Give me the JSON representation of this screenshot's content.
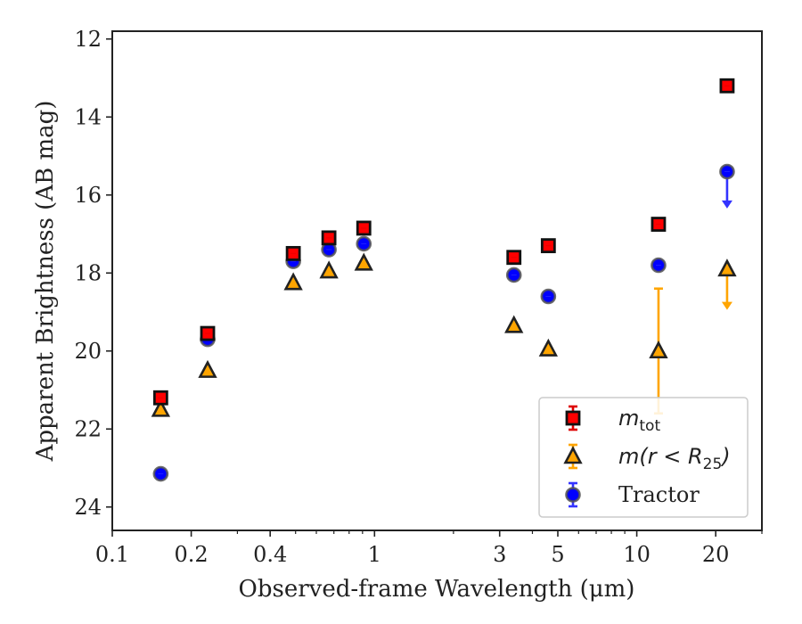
{
  "chart_data": {
    "type": "scatter",
    "title": "",
    "xlabel": "Observed-frame Wavelength (μm)",
    "ylabel": "Apparent Brightness (AB mag)",
    "xscale": "log",
    "xlim": [
      0.1,
      30
    ],
    "ylim": [
      24.6,
      11.8
    ],
    "y_inverted": true,
    "grid": false,
    "legend_position": "lower-right",
    "xticks": [
      {
        "value": 0.1,
        "label": "0.1"
      },
      {
        "value": 0.2,
        "label": "0.2"
      },
      {
        "value": 0.4,
        "label": "0.4"
      },
      {
        "value": 1,
        "label": "1"
      },
      {
        "value": 3,
        "label": "3"
      },
      {
        "value": 5,
        "label": "5"
      },
      {
        "value": 10,
        "label": "10"
      },
      {
        "value": 20,
        "label": "20"
      }
    ],
    "xminor": [
      0.3,
      0.5,
      0.6,
      0.7,
      0.8,
      0.9,
      2,
      4,
      6,
      7,
      8,
      9,
      30
    ],
    "yticks": [
      {
        "value": 12,
        "label": "12"
      },
      {
        "value": 14,
        "label": "14"
      },
      {
        "value": 16,
        "label": "16"
      },
      {
        "value": 18,
        "label": "18"
      },
      {
        "value": 20,
        "label": "20"
      },
      {
        "value": 22,
        "label": "22"
      },
      {
        "value": 24,
        "label": "24"
      }
    ],
    "series": [
      {
        "name": "m_tot",
        "marker": "square",
        "color": "#ff0000",
        "edge": "#111111",
        "err_color": "#dd0000",
        "points": [
          {
            "x": 0.153,
            "y": 21.2
          },
          {
            "x": 0.231,
            "y": 19.55
          },
          {
            "x": 0.49,
            "y": 17.5
          },
          {
            "x": 0.67,
            "y": 17.1
          },
          {
            "x": 0.91,
            "y": 16.85
          },
          {
            "x": 3.4,
            "y": 17.6
          },
          {
            "x": 4.6,
            "y": 17.3
          },
          {
            "x": 12.1,
            "y": 16.75
          },
          {
            "x": 22.1,
            "y": 13.2
          }
        ]
      },
      {
        "name": "m(r < R_25)",
        "marker": "triangle",
        "color": "#ffa500",
        "edge": "#222222",
        "err_color": "#ffa500",
        "points": [
          {
            "x": 0.153,
            "y": 21.5
          },
          {
            "x": 0.231,
            "y": 20.5
          },
          {
            "x": 0.49,
            "y": 18.25
          },
          {
            "x": 0.67,
            "y": 17.95
          },
          {
            "x": 0.91,
            "y": 17.75
          },
          {
            "x": 3.4,
            "y": 19.35
          },
          {
            "x": 4.6,
            "y": 19.95
          },
          {
            "x": 12.1,
            "y": 20.0,
            "err_low": 18.4,
            "err_high": 21.6
          },
          {
            "x": 22.1,
            "y": 17.9,
            "upper_limit_to": 18.9
          }
        ]
      },
      {
        "name": "Tractor",
        "marker": "circle",
        "color": "#0000ff",
        "edge": "#555555",
        "err_color": "#3333ff",
        "points": [
          {
            "x": 0.153,
            "y": 23.15
          },
          {
            "x": 0.231,
            "y": 19.7
          },
          {
            "x": 0.49,
            "y": 17.7
          },
          {
            "x": 0.67,
            "y": 17.4
          },
          {
            "x": 0.91,
            "y": 17.25
          },
          {
            "x": 3.4,
            "y": 18.05
          },
          {
            "x": 4.6,
            "y": 18.6
          },
          {
            "x": 12.1,
            "y": 17.8
          },
          {
            "x": 22.1,
            "y": 15.4,
            "upper_limit_to": 16.3
          }
        ]
      }
    ],
    "legend": {
      "entries": [
        {
          "label_base": "m",
          "label_sub": "tot",
          "marker": "square"
        },
        {
          "label_base": "m(r < R",
          "label_sub": "25",
          "label_tail": ")",
          "marker": "triangle"
        },
        {
          "label_text": "Tractor",
          "marker": "circle"
        }
      ]
    }
  }
}
